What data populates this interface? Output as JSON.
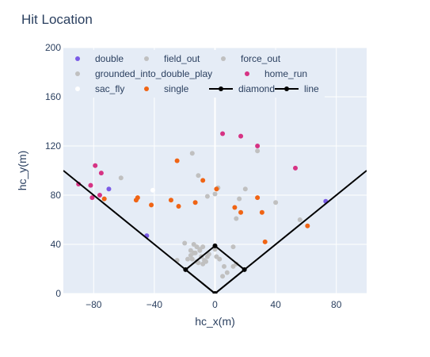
{
  "chart_data": {
    "type": "scatter",
    "title": "Hit Location",
    "xlabel": "hc_x(m)",
    "ylabel": "hc_y(m)",
    "xlim": [
      -100,
      100
    ],
    "ylim": [
      0,
      200
    ],
    "xticks": [
      -80,
      -40,
      0,
      40,
      80
    ],
    "yticks": [
      0,
      40,
      80,
      120,
      160,
      200
    ],
    "grid": true,
    "legend_position": "top-right",
    "plot_background": "#e5ecf6",
    "series": [
      {
        "name": "double",
        "mode": "markers",
        "color": "#7b5ce6",
        "points": [
          [
            -70,
            85
          ],
          [
            -45,
            47
          ],
          [
            73,
            75
          ]
        ]
      },
      {
        "name": "field_out",
        "mode": "markers",
        "color": "#c0c0c0",
        "points": [
          [
            -62,
            94
          ],
          [
            -15,
            114
          ],
          [
            -11,
            96
          ],
          [
            -5,
            79
          ],
          [
            0,
            81
          ],
          [
            2,
            86
          ],
          [
            16,
            77
          ],
          [
            20,
            85
          ],
          [
            40,
            74
          ],
          [
            56,
            60
          ],
          [
            28,
            116
          ],
          [
            14,
            61
          ],
          [
            -20,
            41
          ],
          [
            -16,
            35
          ],
          [
            -13,
            33
          ],
          [
            -10,
            36
          ],
          [
            -15,
            28
          ],
          [
            -12,
            26
          ],
          [
            -25,
            27
          ],
          [
            -8,
            38
          ],
          [
            -7,
            27
          ],
          [
            -4,
            32
          ],
          [
            1,
            30
          ],
          [
            5,
            14
          ],
          [
            12,
            38
          ],
          [
            12,
            22
          ],
          [
            -14,
            40
          ],
          [
            -11,
            25
          ]
        ]
      },
      {
        "name": "force_out",
        "mode": "markers",
        "color": "#c0c0c0",
        "points": [
          [
            -10,
            35
          ],
          [
            -16,
            31
          ],
          [
            -12,
            38
          ],
          [
            -18,
            28
          ],
          [
            -9,
            30
          ],
          [
            -6,
            26
          ],
          [
            3,
            28
          ],
          [
            8,
            17
          ],
          [
            14,
            24
          ]
        ]
      },
      {
        "name": "grounded_into_double_play",
        "mode": "markers",
        "color": "#c0c0c0",
        "points": [
          [
            -5,
            30
          ],
          [
            -8,
            24
          ],
          [
            -14,
            33
          ],
          [
            0,
            36
          ],
          [
            6,
            22
          ]
        ]
      },
      {
        "name": "home_run",
        "mode": "markers",
        "color": "#d63384",
        "points": [
          [
            -79,
            104
          ],
          [
            -75,
            98
          ],
          [
            -90,
            89
          ],
          [
            -82,
            88
          ],
          [
            -76,
            80
          ],
          [
            -81,
            78
          ],
          [
            5,
            130
          ],
          [
            17,
            128
          ],
          [
            28,
            120
          ],
          [
            53,
            102
          ]
        ]
      },
      {
        "name": "sac_fly",
        "mode": "markers",
        "color": "#ffffff",
        "points": [
          [
            -41,
            84
          ]
        ]
      },
      {
        "name": "single",
        "mode": "markers",
        "color": "#f06414",
        "points": [
          [
            -73,
            77
          ],
          [
            -51,
            78
          ],
          [
            -52,
            76
          ],
          [
            -42,
            72
          ],
          [
            -25,
            108
          ],
          [
            -29,
            76
          ],
          [
            -24,
            71
          ],
          [
            -13,
            74
          ],
          [
            -8,
            92
          ],
          [
            1,
            85
          ],
          [
            13,
            70
          ],
          [
            17,
            66
          ],
          [
            28,
            78
          ],
          [
            31,
            66
          ],
          [
            33,
            42
          ],
          [
            61,
            55
          ]
        ]
      },
      {
        "name": "diamond",
        "mode": "lines+markers",
        "color": "#000000",
        "points": [
          [
            0,
            0
          ],
          [
            19.4,
            19.4
          ],
          [
            0,
            38.8
          ],
          [
            -19.4,
            19.4
          ],
          [
            0,
            0
          ]
        ]
      },
      {
        "name": "line",
        "mode": "lines",
        "color": "#000000",
        "points": [
          [
            -100,
            100
          ],
          [
            0,
            0
          ],
          [
            100,
            100
          ]
        ]
      }
    ]
  }
}
